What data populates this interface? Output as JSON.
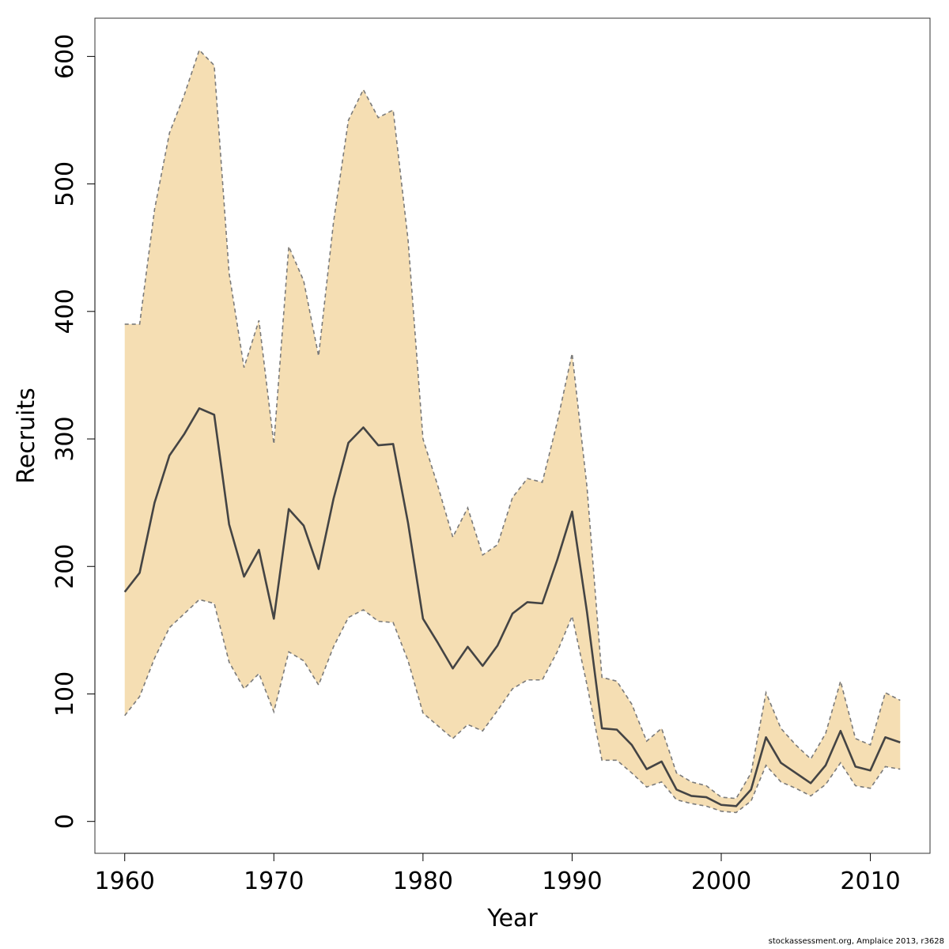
{
  "chart_data": {
    "type": "area",
    "xlabel": "Year",
    "ylabel": "Recruits",
    "xlim": [
      1958,
      2014
    ],
    "ylim": [
      -25,
      630
    ],
    "xticks": [
      1960,
      1970,
      1980,
      1990,
      2000,
      2010
    ],
    "yticks": [
      0,
      100,
      200,
      300,
      400,
      500,
      600
    ],
    "grid": false,
    "colors": {
      "band": "#f5deb3",
      "line": "#444444",
      "bound": "#7a7a7a"
    },
    "x": [
      1960,
      1961,
      1962,
      1963,
      1964,
      1965,
      1966,
      1967,
      1968,
      1969,
      1970,
      1971,
      1972,
      1973,
      1974,
      1975,
      1976,
      1977,
      1978,
      1979,
      1980,
      1981,
      1982,
      1983,
      1984,
      1985,
      1986,
      1987,
      1988,
      1989,
      1990,
      1991,
      1992,
      1993,
      1994,
      1995,
      1996,
      1997,
      1998,
      1999,
      2000,
      2001,
      2002,
      2003,
      2004,
      2005,
      2006,
      2007,
      2008,
      2009,
      2010,
      2011,
      2012
    ],
    "series": [
      {
        "role": "estimate",
        "values": [
          180,
          195,
          250,
          287,
          304,
          324,
          319,
          233,
          192,
          213,
          159,
          245,
          232,
          198,
          253,
          297,
          309,
          295,
          296,
          234,
          159,
          140,
          120,
          137,
          122,
          138,
          163,
          172,
          171,
          205,
          243,
          164,
          73,
          72,
          60,
          41,
          47,
          25,
          20,
          19,
          13,
          12,
          25,
          66,
          46,
          38,
          30,
          44,
          71,
          43,
          40,
          66,
          62
        ]
      },
      {
        "role": "upper",
        "values": [
          390,
          390,
          480,
          540,
          570,
          605,
          593,
          430,
          356,
          393,
          296,
          451,
          424,
          365,
          470,
          550,
          574,
          552,
          558,
          456,
          300,
          263,
          223,
          246,
          209,
          217,
          254,
          269,
          266,
          313,
          367,
          262,
          113,
          110,
          92,
          63,
          73,
          38,
          31,
          28,
          19,
          18,
          38,
          101,
          73,
          60,
          49,
          69,
          110,
          65,
          60,
          101,
          95
        ]
      },
      {
        "role": "lower",
        "values": [
          83,
          98,
          128,
          152,
          163,
          174,
          171,
          125,
          104,
          116,
          86,
          133,
          126,
          107,
          137,
          160,
          166,
          157,
          156,
          126,
          85,
          75,
          65,
          76,
          71,
          87,
          104,
          111,
          111,
          133,
          161,
          107,
          48,
          48,
          38,
          27,
          31,
          17,
          14,
          12,
          8,
          7,
          16,
          44,
          31,
          26,
          20,
          29,
          46,
          28,
          26,
          43,
          41
        ]
      }
    ]
  },
  "footer": "stockassessment.org, Amplaice  2013, r3628"
}
